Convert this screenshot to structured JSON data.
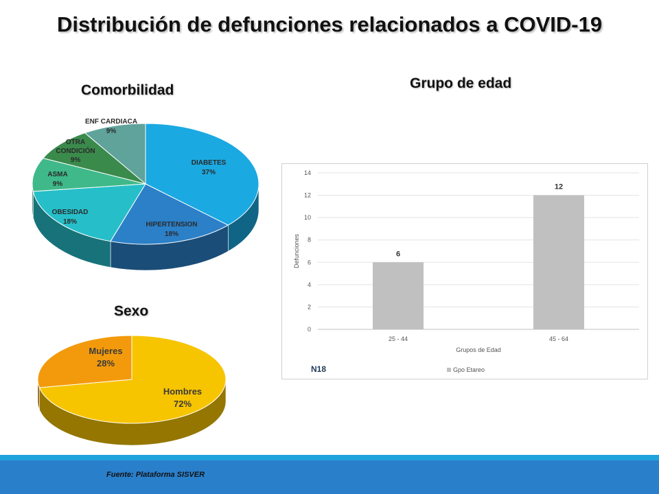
{
  "title": "Distribución de defunciones relacionados a COVID-19",
  "chart_data": [
    {
      "type": "pie",
      "title": "Comorbilidad",
      "categories": [
        "DIABETES",
        "HIPERTENSION",
        "OBESIDAD",
        "ASMA",
        "OTRA CONDICIÓN",
        "ENF CARDIACA"
      ],
      "values": [
        37,
        18,
        18,
        9,
        9,
        9
      ],
      "value_labels": [
        "37%",
        "18%",
        "18%",
        "9%",
        "9%",
        "9%"
      ],
      "colors": [
        "#1ba9e1",
        "#2b80c8",
        "#26bfc9",
        "#3fb98a",
        "#3a8a4c",
        "#5fa39b"
      ],
      "style": "3d"
    },
    {
      "type": "pie",
      "title": "Sexo",
      "categories": [
        "Hombres",
        "Mujeres"
      ],
      "values": [
        72,
        28
      ],
      "value_labels": [
        "72%",
        "28%"
      ],
      "colors": [
        "#f7c400",
        "#f39a0c"
      ],
      "style": "3d"
    },
    {
      "type": "bar",
      "title": "Grupo de edad",
      "categories": [
        "25 - 44",
        "45 - 64"
      ],
      "series": [
        {
          "name": "Gpo Etareo",
          "values": [
            6,
            12
          ]
        }
      ],
      "xlabel": "Grupos de Edad",
      "ylabel": "Defunciones",
      "ylim": [
        0,
        14
      ],
      "yticks": [
        0,
        2,
        4,
        6,
        8,
        10,
        12,
        14
      ],
      "grid": true,
      "legend": "bottom",
      "annotation": "N18",
      "bar_color": "#c0c0c0"
    }
  ],
  "footer": {
    "source": "Fuente: Plataforma  SISVER"
  }
}
